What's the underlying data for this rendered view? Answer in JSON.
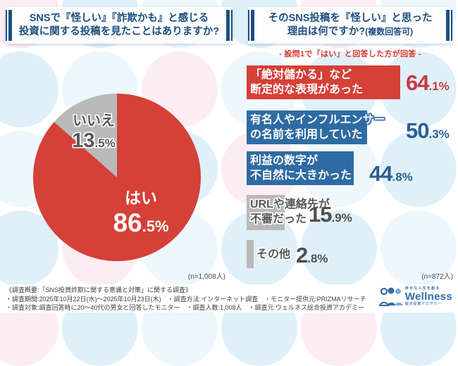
{
  "header_left": {
    "line1": "SNSで『怪しい』『詐欺かも』と感じる",
    "line2": "投資に関する投稿を見たことはありますか?"
  },
  "header_right": {
    "line1": "そのSNS投稿を『怪しい』と思った",
    "line2_main": "理由は何ですか?",
    "line2_small": "(複数回答可)",
    "note": "- 設問1で「はい」と回答した方が回答 -"
  },
  "pie_section": {
    "no_label": "いいえ",
    "no_int": "13",
    "no_dec": ".5%",
    "yes_label": "はい",
    "yes_int": "86",
    "yes_dec": ".5%",
    "sample_note": "(n=1,008人)"
  },
  "bar_section": {
    "items": [
      {
        "line1": "「絶対儲かる」など",
        "line2": "断定的な表現があった",
        "pct_int": "64",
        "pct_dec": ".1%"
      },
      {
        "line1": "有名人やインフルエンサー",
        "line2": "の名前を利用していた",
        "pct_int": "50",
        "pct_dec": ".3%"
      },
      {
        "line1": "利益の数字が",
        "line2": "不自然に大きかった",
        "pct_int": "44",
        "pct_dec": ".8%"
      },
      {
        "line1": "URLや連絡先が",
        "line2": "不審だった",
        "pct_int": "15",
        "pct_dec": ".9%"
      },
      {
        "line1": "その他",
        "line2": "",
        "pct_int": "2",
        "pct_dec": ".8%"
      }
    ],
    "sample_note": "(n=872人)"
  },
  "footer": {
    "line0": "《調査概要:「SNS投資詐欺に関する意識と対策」に関する調査》",
    "line1": "・調査期間:2025年10月22日(水)〜2025年10月23日(木)　・調査方法:インターネット調査　・モニター提供元:PRIZMAリサーチ",
    "line2": "・調査対象:調査回答時に20〜40代の男女と回答したモニター　・調査人数:1,008人　・調査元:ウェルネス総合投資アカデミー"
  },
  "logo": {
    "top": "幸せな人生を創る",
    "name": "Wellness",
    "bottom": "総合投資アカデミー"
  },
  "colors": {
    "red": "#d54038",
    "blue": "#2f6ba3",
    "gray": "#b9b9b9",
    "navy": "#1d4f7f",
    "note_red": "#d6362c"
  },
  "chart_data": [
    {
      "type": "pie",
      "title": "SNSで『怪しい』『詐欺かも』と感じる投資に関する投稿を見たことはありますか?",
      "labels": [
        "はい",
        "いいえ"
      ],
      "values": [
        86.5,
        13.5
      ],
      "colors": [
        "#d54038",
        "#b9b9b9"
      ],
      "sample_note": "(n=1,008人)",
      "legend_position": "on-slice"
    },
    {
      "type": "bar",
      "orientation": "horizontal",
      "title": "そのSNS投稿を『怪しい』と思った理由は何ですか?(複数回答可)",
      "subtitle": "- 設問1で「はい」と回答した方が回答 -",
      "categories": [
        "「絶対儲かる」など断定的な表現があった",
        "有名人やインフルエンサーの名前を利用していた",
        "利益の数字が不自然に大きかった",
        "URLや連絡先が不審だった",
        "その他"
      ],
      "values": [
        64.1,
        50.3,
        44.8,
        15.9,
        2.8
      ],
      "colors": [
        "#d54038",
        "#2f6ba3",
        "#2f6ba3",
        "#b9b9b9",
        "#b9b9b9"
      ],
      "xlim": [
        0,
        100
      ],
      "grid": false,
      "sample_note": "(n=872人)"
    }
  ]
}
